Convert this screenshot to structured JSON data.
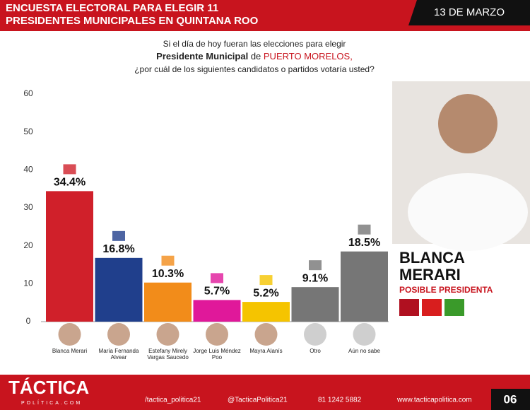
{
  "header": {
    "title_line1": "ENCUESTA ELECTORAL PARA ELEGIR 11",
    "title_line2": "PRESIDENTES MUNICIPALES EN QUINTANA ROO",
    "date": "13 DE MARZO"
  },
  "question": {
    "line1": "Si el día de hoy fueran las elecciones para elegir",
    "bold": "Presidente Municipal",
    "middle": " de ",
    "place": "PUERTO MORELOS,",
    "line3": "¿por cuál de los siguientes candidatos o partidos votaría usted?"
  },
  "chart_data": {
    "type": "bar",
    "categories": [
      "Blanca Merari",
      "María Fernanda Alvear",
      "Estefany Mirely Vargas Saucedo",
      "Jorge Luis Méndez Poo",
      "Mayra Alanís",
      "Otro",
      "Aún no sabe"
    ],
    "values": [
      34.4,
      16.8,
      10.3,
      5.7,
      5.2,
      9.1,
      18.5
    ],
    "value_labels": [
      "34.4%",
      "16.8%",
      "10.3%",
      "5.7%",
      "5.2%",
      "9.1%",
      "18.5%"
    ],
    "colors": [
      "#d0202a",
      "#203f8c",
      "#f28c1a",
      "#e0189a",
      "#f5c400",
      "#767676",
      "#767676"
    ],
    "ylim": [
      0,
      60
    ],
    "yticks": [
      0,
      10,
      20,
      30,
      40,
      50,
      60
    ],
    "grid": false
  },
  "candidate": {
    "name_line1": "BLANCA",
    "name_line2": "MERARI",
    "role": "POSIBLE PRESIDENTA"
  },
  "footer": {
    "logo": "TÁCTICA",
    "logo_sub": "POLÍTICA.COM",
    "facebook": "/tactica_politica21",
    "instagram": "@TacticaPolitica21",
    "phone": "81 1242 5882",
    "web": "www.tacticapolitica.com",
    "page": "06"
  }
}
